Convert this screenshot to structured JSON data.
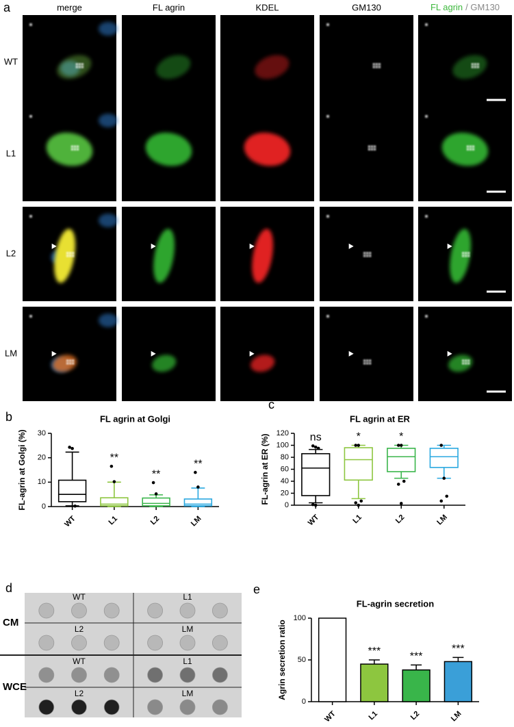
{
  "figure": {
    "panel_labels": [
      "a",
      "b",
      "c",
      "d",
      "e"
    ],
    "columns": [
      "merge",
      "FL agrin",
      "KDEL",
      "GM130"
    ],
    "column_colors": [
      "#000000",
      "#3cb83c",
      "#e02020",
      "#888888"
    ],
    "overlay_column": [
      "FL agrin",
      "/ GM130"
    ],
    "overlay_colors": [
      "#3cb83c",
      "#888888"
    ],
    "rows": [
      "WT",
      "L1",
      "L2",
      "LM"
    ],
    "blot": {
      "rows": [
        "CM",
        "WCE"
      ],
      "lanes": [
        [
          "WT",
          "L1"
        ],
        [
          "L2",
          "LM"
        ],
        [
          "WT",
          "L1"
        ],
        [
          "L2",
          "LM"
        ]
      ]
    }
  },
  "chart_data": [
    {
      "type": "box",
      "title": "FL agrin at Golgi",
      "ylabel": "FL-agrin at Golgi (%)",
      "categories": [
        "WT",
        "L1",
        "L2",
        "LM"
      ],
      "colors": [
        "#000000",
        "#8dc63f",
        "#39b54a",
        "#29a8e0"
      ],
      "boxes": [
        {
          "low": 0.3,
          "q1": 2,
          "median": 5,
          "q3": 10.8,
          "high": 22.3,
          "outliers": [
            24.3,
            23.8,
            0.2
          ]
        },
        {
          "low": 0,
          "q1": 0.3,
          "median": 1,
          "q3": 3.6,
          "high": 10,
          "outliers": [
            16.5,
            10.2
          ]
        },
        {
          "low": 0,
          "q1": 0.3,
          "median": 1.3,
          "q3": 3.5,
          "high": 4.8,
          "outliers": [
            9.8,
            5.2
          ]
        },
        {
          "low": 0,
          "q1": 0.3,
          "median": 1,
          "q3": 3.1,
          "high": 7.6,
          "outliers": [
            14,
            8
          ]
        }
      ],
      "annotations": [
        null,
        "**",
        "**",
        "**"
      ],
      "ylim": [
        0,
        30
      ],
      "yticks": [
        0,
        10,
        20,
        30
      ]
    },
    {
      "type": "box",
      "title": "FL agrin at ER",
      "ylabel": "FL-agrin at ER (%)",
      "categories": [
        "WT",
        "L1",
        "L2",
        "LM"
      ],
      "colors": [
        "#000000",
        "#8dc63f",
        "#39b54a",
        "#29a8e0"
      ],
      "boxes": [
        {
          "low": 4,
          "q1": 16,
          "median": 62,
          "q3": 86,
          "high": 93,
          "outliers": [
            99,
            97,
            95,
            1,
            0
          ]
        },
        {
          "low": 11,
          "q1": 42,
          "median": 76,
          "q3": 96,
          "high": 100,
          "outliers": [
            100,
            100,
            7,
            4,
            0
          ]
        },
        {
          "low": 45,
          "q1": 56,
          "median": 81,
          "q3": 95,
          "high": 100,
          "outliers": [
            100,
            100,
            40,
            35,
            3
          ]
        },
        {
          "low": 45,
          "q1": 63,
          "median": 81,
          "q3": 95,
          "high": 100,
          "outliers": [
            100,
            45,
            15,
            7
          ]
        }
      ],
      "annotations": [
        "ns",
        "*",
        "*",
        null
      ],
      "ylim": [
        0,
        120
      ],
      "yticks": [
        0,
        20,
        40,
        60,
        80,
        100,
        120
      ]
    },
    {
      "type": "bar",
      "title": "FL-agrin secretion",
      "ylabel": "Agrin secretion ratio",
      "categories": [
        "WT",
        "L1",
        "L2",
        "LM"
      ],
      "values": [
        100,
        45,
        38,
        48
      ],
      "errors": [
        null,
        5,
        6,
        5
      ],
      "colors": [
        "#ffffff",
        "#8dc63f",
        "#39b54a",
        "#3a9fd8"
      ],
      "annotations": [
        null,
        "***",
        "***",
        "***"
      ],
      "ylim": [
        0,
        100
      ],
      "yticks": [
        0,
        50,
        100
      ]
    }
  ]
}
